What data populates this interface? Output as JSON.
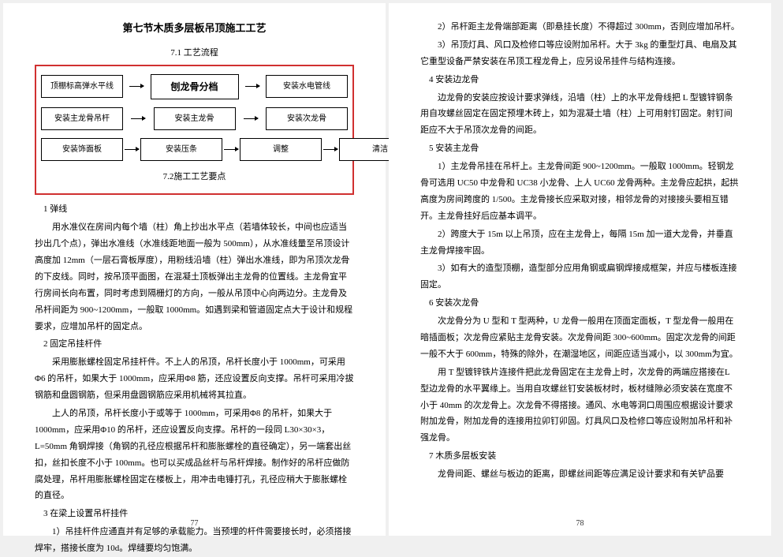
{
  "page_left": {
    "section_title": "第七节木质多层板吊顶施工工艺",
    "sub_title_top": "7.1 工艺流程",
    "sub_title_bottom": "7.2施工工艺要点",
    "flowchart": {
      "border_color": "#d03030",
      "rows": [
        {
          "boxes": [
            "顶棚标高弹水平线",
            "刨龙骨分档",
            "安装水电管线"
          ],
          "big_index": 1
        },
        {
          "boxes": [
            "安装主龙骨吊杆",
            "安装主龙骨",
            "安装次龙骨"
          ],
          "big_index": -1
        },
        {
          "boxes": [
            "安装饰面板",
            "安装压条",
            "调整",
            "清洁"
          ],
          "big_index": -1
        }
      ]
    },
    "paragraphs": [
      {
        "cls": "no-indent",
        "t": "1 弹线"
      },
      {
        "cls": "",
        "t": "用水准仪在房间内每个墙（柱）角上抄出水平点（若墙体较长，中间也应适当抄出几个点），弹出水准线（水准线距地面一般为 500mm），从水准线量至吊顶设计高度加 12mm（一层石膏板厚度），用粉线沿墙（柱）弹出水准线，即为吊顶次龙骨的下皮线。同时，按吊顶平面图，在混凝土顶板弹出主龙骨的位置线。主龙骨宜平行房间长向布置，同时考虑到隔栅灯的方向，一般从吊顶中心向两边分。主龙骨及吊杆间距为 900~1200mm，一般取 1000mm。如遇到梁和管道固定点大于设计和规程要求，应增加吊杆的固定点。"
      },
      {
        "cls": "no-indent",
        "t": "2 固定吊挂杆件"
      },
      {
        "cls": "",
        "t": "采用膨胀螺栓固定吊挂杆件。不上人的吊顶，吊杆长度小于 1000mm，可采用Φ6 的吊杆，如果大于 1000mm，应采用Φ8 筋，还应设置反向支撑。吊杆可采用冷拔钢筋和盘圆钢筋，但采用盘圆钢筋应采用机械将其拉直。"
      },
      {
        "cls": "",
        "t": "上人的吊顶，吊杆长度小于或等于 1000mm，可采用Φ8 的吊杆，如果大于1000mm，应采用Φ10 的吊杆，还应设置反向支撑。吊杆的一段同 L30×30×3，L=50mm 角钢焊接（角钢的孔径应根据吊杆和膨胀螺栓的直径确定），另一端套出丝扣，丝扣长度不小于 100mm。也可以买成品丝杆与吊杆焊接。制作好的吊杆应做防腐处理，吊杆用膨胀螺栓固定在楼板上，用冲击电锤打孔，孔径应稍大于膨胀螺栓的直径。"
      },
      {
        "cls": "no-indent",
        "t": "3 在梁上设置吊杆挂件"
      },
      {
        "cls": "",
        "t": "1）吊挂杆件应通直并有足够的承载能力。当预埋的杆件需要接长时，必须搭接焊牢，搭接长度为 10d。焊缝要均匀饱满。"
      }
    ],
    "page_number": "77"
  },
  "page_right": {
    "paragraphs": [
      {
        "cls": "",
        "t": "2）吊杆距主龙骨端部距离（即悬挂长度）不得超过 300mm，否则应增加吊杆。"
      },
      {
        "cls": "",
        "t": "3）吊顶灯具、风口及检修口等应设附加吊杆。大于 3kg 的重型灯具、电扇及其它重型设备严禁安装在吊顶工程龙骨上，应另设吊挂件与结构连接。"
      },
      {
        "cls": "no-indent",
        "t": "4 安装边龙骨"
      },
      {
        "cls": "",
        "t": "边龙骨的安装应按设计要求弹线，沿墙（柱）上的水平龙骨线把 L 型镀锌钢条用自攻螺丝固定在固定预埋木砖上，如为混凝土墙（柱）上可用射钉固定。射钉间距应不大于吊顶次龙骨的间距。"
      },
      {
        "cls": "no-indent",
        "t": "5 安装主龙骨"
      },
      {
        "cls": "",
        "t": "1）主龙骨吊挂在吊杆上。主龙骨间距 900~1200mm。一般取 1000mm。轻钢龙骨可选用 UC50 中龙骨和 UC38 小龙骨、上人 UC60 龙骨两种。主龙骨应起拱，起拱高度为房间跨度的 1/500。主龙骨接长应采取对接，相邻龙骨的对接接头要相互错开。主龙骨挂好后应基本调平。"
      },
      {
        "cls": "",
        "t": "2）跨度大于 15m 以上吊顶，应在主龙骨上，每隔 15m 加一道大龙骨，并垂直主龙骨焊接牢固。"
      },
      {
        "cls": "",
        "t": "3）如有大的造型顶棚，造型部分应用角钢或扁钢焊接成框架，并应与楼板连接固定。"
      },
      {
        "cls": "no-indent",
        "t": "6 安装次龙骨"
      },
      {
        "cls": "",
        "t": "次龙骨分为 U 型和 T 型两种，U 龙骨一般用在顶面定面板，T 型龙骨一般用在暗插面板；次龙骨应紧贴主龙骨安装。次龙骨间距 300~600mm。固定次龙骨的间距一般不大于 600mm，特殊的除外，在潮湿地区，间距应适当减小，以 300mm为宜。"
      },
      {
        "cls": "",
        "t": "用 T 型镀锌铁片连接件把此龙骨固定在主龙骨上时，次龙骨的两端应搭接在L 型边龙骨的水平翼缘上。当用自攻螺丝钉安装板材时，板材缝隙必须安装在宽度不小于 40mm 的次龙骨上。次龙骨不得搭接。通风、水电等洞口周围应根据设计要求附加龙骨，附加龙骨的连接用拉卯钉卯固。灯具风口及检修口等应设附加吊杆和补强龙骨。"
      },
      {
        "cls": "no-indent",
        "t": "7 木质多层板安装"
      },
      {
        "cls": "",
        "t": "龙骨间距、螺丝与板边的距离，即螺丝间距等应满足设计要求和有关铲品要"
      }
    ],
    "page_number": "78"
  }
}
